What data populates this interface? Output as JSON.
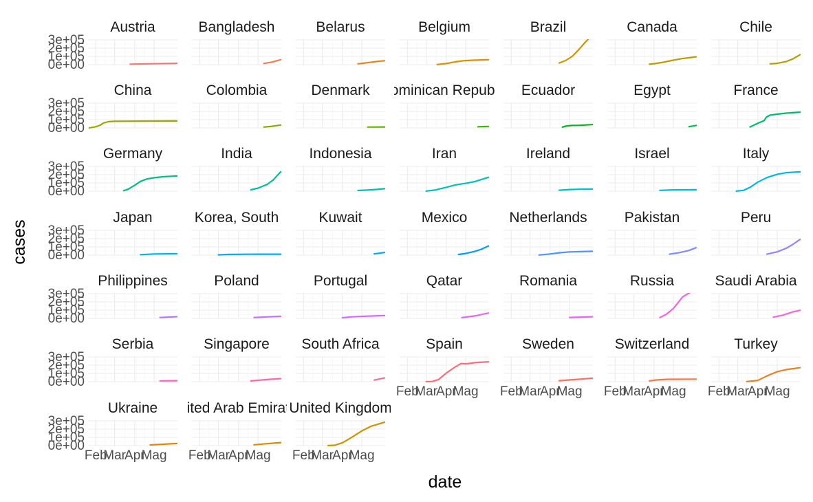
{
  "chart_data": {
    "type": "line",
    "facet_layout": "wrap",
    "xlabel": "date",
    "ylabel": "cases",
    "x_ticks": [
      "Feb",
      "Mar",
      "Apr",
      "Mag"
    ],
    "y_ticks": [
      "0e+00",
      "1e+05",
      "2e+05",
      "3e+05"
    ],
    "ylim": [
      0,
      300000
    ],
    "xlim": [
      "2020-01-20",
      "2020-06-06"
    ],
    "grid": true,
    "legend": "none",
    "panels": [
      {
        "name": "Austria",
        "color": "#F8766D",
        "x": [
          "2020-03-25",
          "2020-06-05"
        ],
        "y": [
          5500,
          16700
        ]
      },
      {
        "name": "Bangladesh",
        "color": "#F17D50",
        "x": [
          "2020-05-10",
          "2020-05-23",
          "2020-06-05"
        ],
        "y": [
          14000,
          32000,
          60000
        ]
      },
      {
        "name": "Belarus",
        "color": "#E7851E",
        "x": [
          "2020-04-25",
          "2020-05-10",
          "2020-05-25",
          "2020-06-05"
        ],
        "y": [
          10000,
          24000,
          39000,
          47000
        ]
      },
      {
        "name": "Belgium",
        "color": "#DC8D00",
        "x": [
          "2020-03-18",
          "2020-04-01",
          "2020-04-15",
          "2020-04-29",
          "2020-05-13",
          "2020-06-05"
        ],
        "y": [
          1500,
          13000,
          34000,
          48000,
          54000,
          59000
        ]
      },
      {
        "name": "Brazil",
        "color": "#CF9400",
        "x": [
          "2020-04-15",
          "2020-04-25",
          "2020-05-05",
          "2020-05-15",
          "2020-05-25",
          "2020-06-05"
        ],
        "y": [
          20000,
          50000,
          100000,
          180000,
          270000,
          410000
        ]
      },
      {
        "name": "Canada",
        "color": "#C09B00",
        "x": [
          "2020-03-25",
          "2020-04-01",
          "2020-04-15",
          "2020-05-01",
          "2020-05-15",
          "2020-06-05"
        ],
        "y": [
          5000,
          12000,
          28000,
          54000,
          74000,
          94000
        ]
      },
      {
        "name": "Chile",
        "color": "#B0A100",
        "x": [
          "2020-04-20",
          "2020-05-01",
          "2020-05-15",
          "2020-05-25",
          "2020-06-05"
        ],
        "y": [
          10000,
          16000,
          38000,
          69000,
          120000
        ]
      },
      {
        "name": "China",
        "color": "#9DA700",
        "x": [
          "2020-01-22",
          "2020-02-01",
          "2020-02-08",
          "2020-02-13",
          "2020-02-20",
          "2020-03-01",
          "2020-06-05"
        ],
        "y": [
          500,
          14000,
          34000,
          60000,
          75000,
          80000,
          84000
        ]
      },
      {
        "name": "Colombia",
        "color": "#87AC00",
        "x": [
          "2020-05-10",
          "2020-05-23",
          "2020-06-05"
        ],
        "y": [
          10000,
          20000,
          35000
        ]
      },
      {
        "name": "Denmark",
        "color": "#6BB100",
        "x": [
          "2020-05-10",
          "2020-06-05"
        ],
        "y": [
          10000,
          12000
        ]
      },
      {
        "name": "Dominican Republic",
        "color": "#3EB500",
        "x": [
          "2020-05-20",
          "2020-06-05"
        ],
        "y": [
          14000,
          18000
        ]
      },
      {
        "name": "Ecuador",
        "color": "#00B81F",
        "x": [
          "2020-04-20",
          "2020-04-25",
          "2020-05-05",
          "2020-05-15",
          "2020-06-05"
        ],
        "y": [
          10000,
          22000,
          30000,
          31000,
          40000
        ]
      },
      {
        "name": "Egypt",
        "color": "#00BB4E",
        "x": [
          "2020-05-25",
          "2020-06-05"
        ],
        "y": [
          15000,
          30000
        ]
      },
      {
        "name": "France",
        "color": "#00BD6A",
        "x": [
          "2020-03-20",
          "2020-04-01",
          "2020-04-11",
          "2020-04-14",
          "2020-04-20",
          "2020-05-01",
          "2020-05-15",
          "2020-06-05"
        ],
        "y": [
          12000,
          56000,
          90000,
          130000,
          155000,
          167000,
          179000,
          191000
        ]
      },
      {
        "name": "Germany",
        "color": "#00BF81",
        "x": [
          "2020-03-15",
          "2020-03-22",
          "2020-04-01",
          "2020-04-10",
          "2020-04-20",
          "2020-05-01",
          "2020-05-15",
          "2020-06-05"
        ],
        "y": [
          6000,
          24000,
          72000,
          118000,
          148000,
          163000,
          175000,
          184000
        ]
      },
      {
        "name": "India",
        "color": "#00C096",
        "x": [
          "2020-04-20",
          "2020-05-01",
          "2020-05-15",
          "2020-05-25",
          "2020-06-05"
        ],
        "y": [
          17000,
          37000,
          82000,
          140000,
          236000
        ]
      },
      {
        "name": "Indonesia",
        "color": "#00C0A9",
        "x": [
          "2020-04-25",
          "2020-05-10",
          "2020-05-25",
          "2020-06-05"
        ],
        "y": [
          8000,
          14000,
          22000,
          30000
        ]
      },
      {
        "name": "Iran",
        "color": "#00C0BA",
        "x": [
          "2020-03-01",
          "2020-03-15",
          "2020-04-01",
          "2020-04-15",
          "2020-05-01",
          "2020-05-15",
          "2020-06-05"
        ],
        "y": [
          1000,
          14000,
          47000,
          76000,
          95000,
          116000,
          168000
        ]
      },
      {
        "name": "Ireland",
        "color": "#00BECA",
        "x": [
          "2020-04-15",
          "2020-05-01",
          "2020-05-15",
          "2020-06-05"
        ],
        "y": [
          12000,
          20000,
          23000,
          25000
        ]
      },
      {
        "name": "Israel",
        "color": "#00BBD9",
        "x": [
          "2020-04-10",
          "2020-05-01",
          "2020-06-05"
        ],
        "y": [
          10000,
          16000,
          17500
        ]
      },
      {
        "name": "Italy",
        "color": "#00B7E7",
        "x": [
          "2020-02-28",
          "2020-03-10",
          "2020-03-20",
          "2020-04-01",
          "2020-04-15",
          "2020-05-01",
          "2020-05-15",
          "2020-06-05"
        ],
        "y": [
          1000,
          10000,
          47000,
          110000,
          165000,
          205000,
          224000,
          234000
        ]
      },
      {
        "name": "Japan",
        "color": "#00B2F3",
        "x": [
          "2020-04-10",
          "2020-05-01",
          "2020-06-05"
        ],
        "y": [
          5500,
          14500,
          17000
        ]
      },
      {
        "name": "Korea, South",
        "color": "#00ACFC",
        "x": [
          "2020-03-01",
          "2020-03-15",
          "2020-04-15",
          "2020-06-05"
        ],
        "y": [
          3700,
          8200,
          10600,
          11700
        ]
      },
      {
        "name": "Kuwait",
        "color": "#00A5FF",
        "x": [
          "2020-05-20",
          "2020-06-05"
        ],
        "y": [
          15000,
          32000
        ]
      },
      {
        "name": "Mexico",
        "color": "#009DFF",
        "x": [
          "2020-04-20",
          "2020-05-01",
          "2020-05-15",
          "2020-05-25",
          "2020-06-05"
        ],
        "y": [
          8000,
          20000,
          45000,
          71000,
          110000
        ]
      },
      {
        "name": "Netherlands",
        "color": "#4B94FF",
        "x": [
          "2020-03-15",
          "2020-04-01",
          "2020-04-15",
          "2020-05-01",
          "2020-06-05"
        ],
        "y": [
          1500,
          14000,
          28000,
          39000,
          47000
        ]
      },
      {
        "name": "Pakistan",
        "color": "#7C8BFF",
        "x": [
          "2020-04-25",
          "2020-05-10",
          "2020-05-25",
          "2020-06-05"
        ],
        "y": [
          12000,
          30000,
          57000,
          90000
        ]
      },
      {
        "name": "Peru",
        "color": "#9A82FF",
        "x": [
          "2020-04-15",
          "2020-05-01",
          "2020-05-15",
          "2020-05-25",
          "2020-06-05"
        ],
        "y": [
          12000,
          40000,
          84000,
          130000,
          190000
        ]
      },
      {
        "name": "Philippines",
        "color": "#B279FF",
        "x": [
          "2020-05-10",
          "2020-06-05"
        ],
        "y": [
          11000,
          21000
        ]
      },
      {
        "name": "Poland",
        "color": "#C571FF",
        "x": [
          "2020-04-25",
          "2020-05-15",
          "2020-06-05"
        ],
        "y": [
          11000,
          18000,
          25000
        ]
      },
      {
        "name": "Portugal",
        "color": "#D56AFF",
        "x": [
          "2020-04-01",
          "2020-04-15",
          "2020-05-01",
          "2020-06-05"
        ],
        "y": [
          8000,
          18000,
          25000,
          34000
        ]
      },
      {
        "name": "Qatar",
        "color": "#E266FA",
        "x": [
          "2020-04-25",
          "2020-05-15",
          "2020-06-05"
        ],
        "y": [
          10000,
          30000,
          65000
        ]
      },
      {
        "name": "Romania",
        "color": "#EC64F0",
        "x": [
          "2020-05-01",
          "2020-06-05"
        ],
        "y": [
          12000,
          20000
        ]
      },
      {
        "name": "Russia",
        "color": "#F463E2",
        "x": [
          "2020-04-10",
          "2020-04-20",
          "2020-05-01",
          "2020-05-15",
          "2020-06-05"
        ],
        "y": [
          10000,
          50000,
          120000,
          260000,
          450000
        ]
      },
      {
        "name": "Saudi Arabia",
        "color": "#FA63D1",
        "x": [
          "2020-04-25",
          "2020-05-10",
          "2020-05-25",
          "2020-06-05"
        ],
        "y": [
          15000,
          40000,
          78000,
          98000
        ]
      },
      {
        "name": "Serbia",
        "color": "#FD65BE",
        "x": [
          "2020-05-10",
          "2020-06-05"
        ],
        "y": [
          10000,
          11500
        ]
      },
      {
        "name": "Singapore",
        "color": "#FF67A8",
        "x": [
          "2020-04-20",
          "2020-05-05",
          "2020-05-20",
          "2020-06-05"
        ],
        "y": [
          9000,
          19000,
          29000,
          37000
        ]
      },
      {
        "name": "South Africa",
        "color": "#FF6A91",
        "x": [
          "2020-05-20",
          "2020-06-05"
        ],
        "y": [
          19000,
          45000
        ]
      },
      {
        "name": "Spain",
        "color": "#FE6D77",
        "x": [
          "2020-03-01",
          "2020-03-10",
          "2020-03-20",
          "2020-04-01",
          "2020-04-15",
          "2020-04-24",
          "2020-05-01",
          "2020-05-15",
          "2020-06-05"
        ],
        "y": [
          100,
          2000,
          25000,
          104000,
          180000,
          220000,
          215000,
          230000,
          241000
        ]
      },
      {
        "name": "Sweden",
        "color": "#FB715B",
        "x": [
          "2020-04-15",
          "2020-05-01",
          "2020-05-15",
          "2020-06-05"
        ],
        "y": [
          12000,
          21000,
          29000,
          42000
        ]
      },
      {
        "name": "Switzerland",
        "color": "#F37944",
        "x": [
          "2020-03-25",
          "2020-04-05",
          "2020-04-20",
          "2020-06-05"
        ],
        "y": [
          10000,
          21000,
          28000,
          31000
        ]
      },
      {
        "name": "Turkey",
        "color": "#EC7F25",
        "x": [
          "2020-03-15",
          "2020-04-01",
          "2020-04-15",
          "2020-05-01",
          "2020-05-15",
          "2020-06-05"
        ],
        "y": [
          500,
          15000,
          69000,
          122000,
          147000,
          169000
        ]
      },
      {
        "name": "Ukraine",
        "color": "#E38600",
        "x": [
          "2020-04-25",
          "2020-05-15",
          "2020-06-05"
        ],
        "y": [
          8000,
          17000,
          26000
        ]
      },
      {
        "name": "United Arab Emirates",
        "color": "#D98C00",
        "x": [
          "2020-04-25",
          "2020-05-15",
          "2020-06-05"
        ],
        "y": [
          10000,
          23000,
          37000
        ]
      },
      {
        "name": "United Kingdom",
        "color": "#CD9300",
        "x": [
          "2020-03-10",
          "2020-03-20",
          "2020-04-01",
          "2020-04-15",
          "2020-05-01",
          "2020-05-15",
          "2020-06-05"
        ],
        "y": [
          400,
          4000,
          34000,
          98000,
          178000,
          234000,
          284000
        ]
      }
    ]
  }
}
